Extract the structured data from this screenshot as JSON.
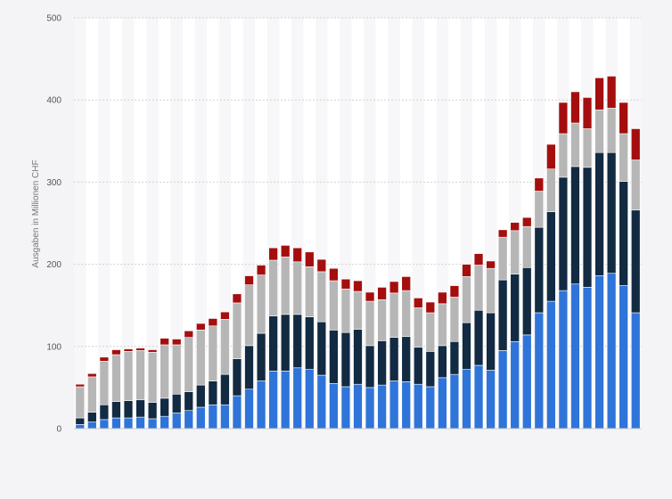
{
  "chart_data": {
    "type": "bar",
    "stacked": true,
    "title": "",
    "xlabel": "",
    "ylabel": "Ausgaben in Millionen CHF",
    "ylim": [
      0,
      500
    ],
    "yticks": [
      0,
      100,
      200,
      300,
      400,
      500
    ],
    "grid": true,
    "legend": "none",
    "colors": [
      "#2f74d9",
      "#122a42",
      "#b6b6b6",
      "#a50e0e"
    ],
    "series": [
      {
        "values": [
          5,
          8,
          11,
          13,
          13,
          14,
          12,
          15,
          19,
          22,
          26,
          29,
          29,
          40,
          48,
          58,
          70,
          70,
          74,
          72,
          65,
          55,
          51,
          54,
          50,
          53,
          58,
          57,
          54,
          51,
          62,
          66,
          72,
          77,
          71,
          95,
          106,
          114,
          141,
          155,
          168,
          176,
          172,
          186,
          189,
          174,
          141
        ]
      },
      {
        "values": [
          8,
          12,
          18,
          20,
          21,
          21,
          20,
          22,
          23,
          23,
          27,
          29,
          37,
          45,
          53,
          58,
          67,
          69,
          65,
          64,
          65,
          65,
          66,
          67,
          51,
          54,
          53,
          55,
          45,
          43,
          39,
          40,
          57,
          67,
          70,
          86,
          82,
          82,
          104,
          109,
          138,
          143,
          146,
          150,
          147,
          127,
          125
        ]
      },
      {
        "values": [
          38,
          43,
          53,
          57,
          60,
          60,
          61,
          65,
          60,
          66,
          67,
          67,
          67,
          68,
          74,
          71,
          68,
          70,
          64,
          61,
          61,
          60,
          53,
          46,
          54,
          50,
          54,
          56,
          48,
          47,
          51,
          54,
          56,
          55,
          54,
          52,
          53,
          50,
          44,
          52,
          53,
          53,
          47,
          52,
          54,
          58,
          61
        ]
      },
      {
        "values": [
          3,
          4,
          5,
          6,
          3,
          3,
          3,
          8,
          7,
          8,
          8,
          9,
          9,
          11,
          11,
          12,
          15,
          14,
          17,
          18,
          15,
          15,
          12,
          13,
          11,
          15,
          14,
          17,
          12,
          13,
          14,
          14,
          15,
          14,
          9,
          9,
          10,
          11,
          16,
          30,
          38,
          38,
          38,
          39,
          39,
          38,
          38
        ]
      }
    ]
  }
}
